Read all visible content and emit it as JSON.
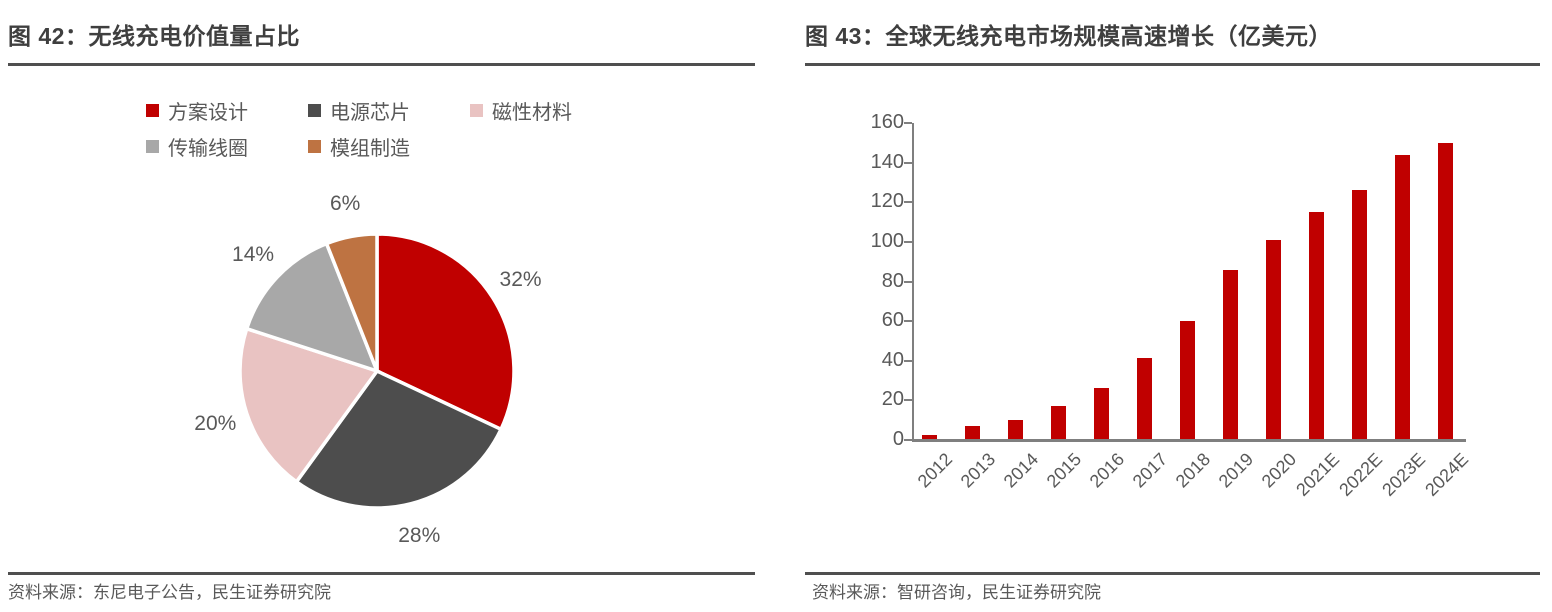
{
  "colors": {
    "accent_red": "#C00000",
    "title_gray": "#3F3F3F",
    "text_gray": "#595959",
    "rule_gray": "#4F4F4F",
    "axis_gray": "#7F7F7F"
  },
  "left_panel": {
    "title": "图 42：无线充电价值量占比",
    "source": "资料来源：东尼电子公告，民生证券研究院"
  },
  "right_panel": {
    "title": "图 43：全球无线充电市场规模高速增长（亿美元）",
    "source": "资料来源：智研咨询，民生证券研究院"
  },
  "chart_data": [
    {
      "type": "pie",
      "title": "无线充电价值量占比",
      "categories": [
        "方案设计",
        "电源芯片",
        "磁性材料",
        "传输线圈",
        "模组制造"
      ],
      "values": [
        32,
        28,
        20,
        14,
        6
      ],
      "labels": [
        "32%",
        "28%",
        "20%",
        "14%",
        "6%"
      ],
      "colors": [
        "#C00000",
        "#4D4D4D",
        "#E9C3C2",
        "#A8A8A8",
        "#BE7342"
      ],
      "start_angle_deg": 0,
      "direction": "clockwise",
      "slice_border_color": "#FFFFFF",
      "legend_position": "top"
    },
    {
      "type": "bar",
      "title": "全球无线充电市场规模高速增长（亿美元）",
      "categories": [
        "2012",
        "2013",
        "2014",
        "2015",
        "2016",
        "2017",
        "2018",
        "2019",
        "2020",
        "2021E",
        "2022E",
        "2023E",
        "2024E"
      ],
      "values": [
        2.5,
        7,
        10,
        17,
        26,
        41.5,
        60,
        86,
        101,
        115,
        126,
        144,
        150
      ],
      "bar_color": "#C00000",
      "xlabel": "",
      "ylabel": "",
      "ylim": [
        0,
        160
      ],
      "ytick_step": 20,
      "grid": false,
      "legend_position": "none",
      "xtick_rotation_deg": 45
    }
  ]
}
